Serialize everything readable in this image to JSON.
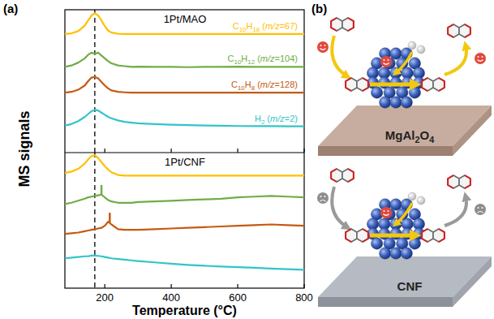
{
  "panel_labels": [
    "(a)",
    "(b)"
  ],
  "chart_data": [
    {
      "type": "line",
      "title": "1Pt/MAO",
      "y_label": "MS signals",
      "tick_labels": false,
      "x": [
        80,
        100,
        120,
        140,
        150,
        160,
        170,
        180,
        190,
        200,
        210,
        220,
        240,
        260,
        280,
        300,
        350,
        400,
        450,
        500,
        550,
        600,
        650,
        700,
        750,
        800
      ],
      "xlim": [
        80,
        800
      ],
      "xticks": [
        200,
        400,
        600,
        800
      ],
      "ylim": [
        0,
        10
      ],
      "vlines": [
        {
          "x": 170,
          "line_style": "dashed"
        }
      ],
      "series": [
        {
          "name": "C10H18 (m/z=67)",
          "color": "#ffc000",
          "values": [
            8.3,
            8.35,
            8.5,
            8.9,
            9.25,
            9.6,
            9.75,
            9.6,
            9.25,
            8.85,
            8.55,
            8.4,
            8.32,
            8.3,
            8.3,
            8.3,
            8.3,
            8.3,
            8.3,
            8.3,
            8.3,
            8.3,
            8.3,
            8.3,
            8.3,
            8.3
          ]
        },
        {
          "name": "C10H12 (m/z=104)",
          "color": "#70ad47",
          "values": [
            6.0,
            6.1,
            6.3,
            6.6,
            6.85,
            7.0,
            6.9,
            7.0,
            6.8,
            6.6,
            6.4,
            6.25,
            6.1,
            6.05,
            6.0,
            6.02,
            6.0,
            6.0,
            5.98,
            6.0,
            6.0,
            6.02,
            6.0,
            6.0,
            6.0,
            6.0
          ]
        },
        {
          "name": "C10H8 (m/z=128)",
          "color": "#c55a11",
          "values": [
            4.2,
            4.25,
            4.4,
            4.7,
            5.0,
            5.25,
            5.3,
            5.2,
            4.95,
            4.7,
            4.5,
            4.35,
            4.25,
            4.22,
            4.2,
            4.2,
            4.2,
            4.2,
            4.2,
            4.2,
            4.2,
            4.2,
            4.2,
            4.2,
            4.2,
            4.2
          ]
        },
        {
          "name": "H2 (m/z=2)",
          "color": "#33c4c9",
          "values": [
            1.9,
            2.0,
            2.2,
            2.5,
            2.7,
            2.9,
            3.0,
            2.95,
            2.8,
            2.65,
            2.5,
            2.4,
            2.25,
            2.15,
            2.1,
            2.05,
            2.0,
            1.95,
            1.92,
            1.9,
            1.88,
            1.86,
            1.85,
            1.85,
            1.84,
            1.84
          ]
        }
      ]
    },
    {
      "type": "line",
      "title": "1Pt/CNF",
      "x_label": "Temperature (°C)",
      "tick_labels": "x",
      "x": [
        80,
        100,
        120,
        140,
        150,
        160,
        170,
        180,
        190,
        200,
        210,
        220,
        240,
        260,
        280,
        300,
        350,
        400,
        450,
        500,
        550,
        600,
        650,
        700,
        750,
        800
      ],
      "xlim": [
        80,
        800
      ],
      "xticks": [
        200,
        400,
        600,
        800
      ],
      "ylim": [
        0,
        10
      ],
      "vlines": [
        {
          "x": 170,
          "line_style": "dashed"
        }
      ],
      "marks": [
        {
          "x": 190,
          "y": 7.25,
          "color": "#70ad47"
        },
        {
          "x": 215,
          "y": 5.2,
          "color": "#c55a11"
        }
      ],
      "series": [
        {
          "color": "#ffc000",
          "values": [
            8.5,
            8.6,
            8.8,
            9.2,
            9.5,
            9.75,
            9.8,
            9.6,
            9.3,
            9.0,
            8.75,
            8.55,
            8.35,
            8.3,
            8.3,
            8.3,
            8.3,
            8.3,
            8.3,
            8.3,
            8.3,
            8.3,
            8.3,
            8.3,
            8.3,
            8.3
          ]
        },
        {
          "color": "#70ad47",
          "values": [
            6.2,
            6.3,
            6.45,
            6.6,
            6.7,
            6.75,
            6.8,
            6.85,
            6.9,
            6.7,
            6.5,
            6.4,
            6.3,
            6.3,
            6.3,
            6.35,
            6.4,
            6.45,
            6.5,
            6.55,
            6.6,
            6.7,
            6.75,
            6.8,
            6.75,
            6.7
          ]
        },
        {
          "color": "#c55a11",
          "values": [
            4.0,
            4.05,
            4.1,
            4.2,
            4.25,
            4.3,
            4.35,
            4.4,
            4.45,
            4.6,
            4.9,
            4.7,
            4.35,
            4.3,
            4.3,
            4.3,
            4.35,
            4.4,
            4.45,
            4.5,
            4.55,
            4.6,
            4.65,
            4.7,
            4.65,
            4.6
          ]
        },
        {
          "color": "#33c4c9",
          "values": [
            2.2,
            2.25,
            2.3,
            2.35,
            2.35,
            2.4,
            2.4,
            2.38,
            2.35,
            2.3,
            2.25,
            2.2,
            2.15,
            2.1,
            2.05,
            2.0,
            1.9,
            1.8,
            1.72,
            1.65,
            1.6,
            1.55,
            1.5,
            1.45,
            1.4,
            1.35
          ]
        }
      ]
    }
  ],
  "diagram": {
    "supports": [
      {
        "label": "MgAl2O4"
      },
      {
        "label": "CNF"
      }
    ]
  }
}
